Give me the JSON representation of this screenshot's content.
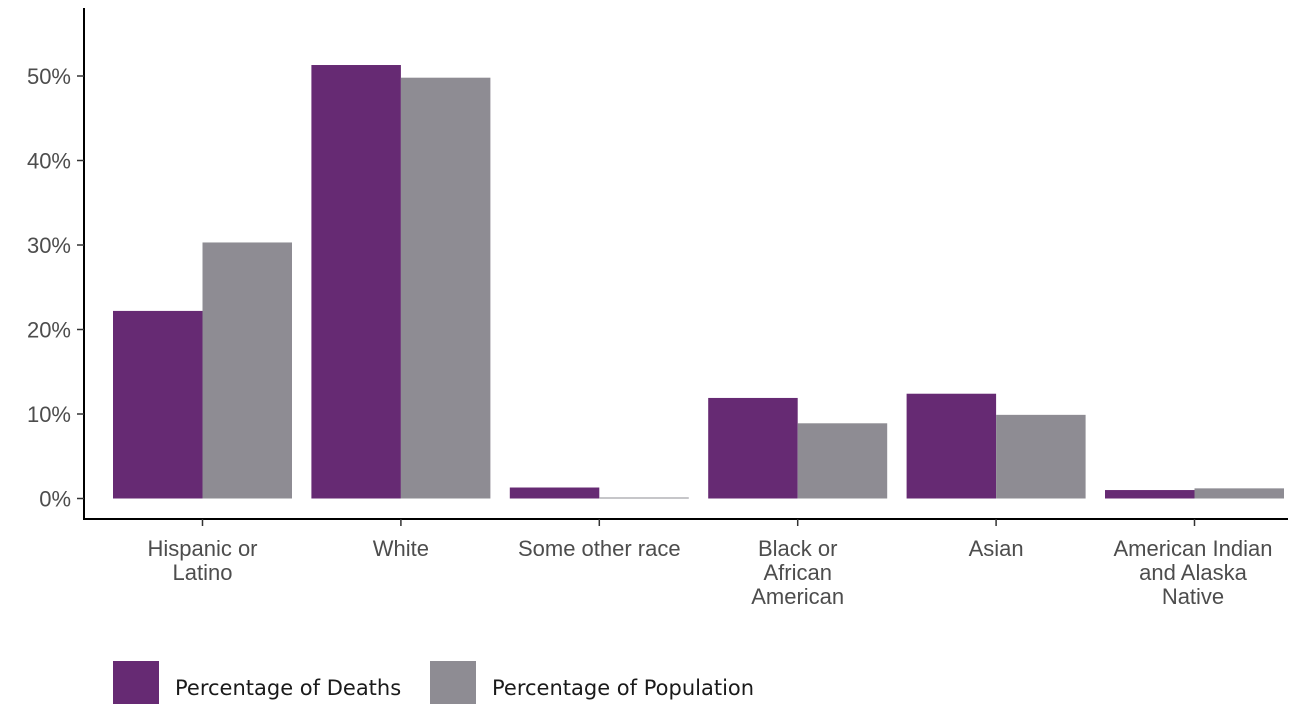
{
  "chart_data": {
    "type": "bar",
    "categories": [
      [
        "Hispanic or",
        "Latino"
      ],
      [
        "White"
      ],
      [
        "Some other race"
      ],
      [
        "Black or",
        "African",
        "American"
      ],
      [
        "Asian"
      ],
      [
        "American Indian",
        "and Alaska",
        "Native"
      ]
    ],
    "series": [
      {
        "name": "Percentage of Deaths",
        "color": "#662a73",
        "values": [
          22.2,
          51.3,
          1.3,
          11.9,
          12.4,
          1.0
        ]
      },
      {
        "name": "Percentage of Population",
        "color": "#8e8c93",
        "values": [
          30.3,
          49.8,
          0.1,
          8.9,
          9.9,
          1.2
        ]
      }
    ],
    "yticks": [
      "0%",
      "10%",
      "20%",
      "30%",
      "40%",
      "50%"
    ],
    "ylim": [
      0,
      56
    ],
    "title": "",
    "xlabel": "",
    "ylabel": "",
    "grid": false,
    "legend_position": "bottom-left"
  }
}
